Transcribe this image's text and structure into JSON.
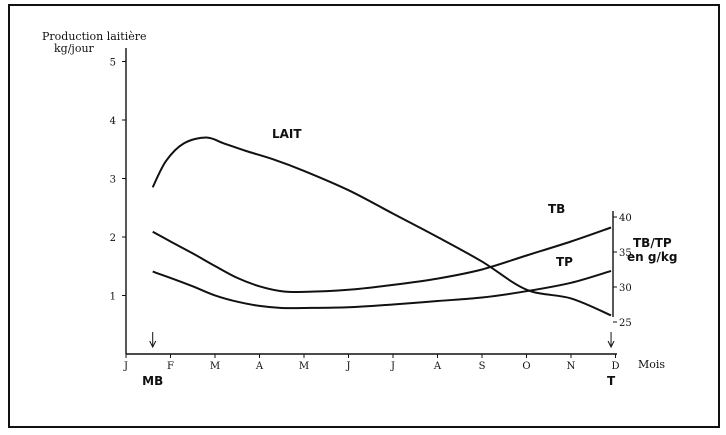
{
  "chart_data": {
    "type": "line",
    "ylabel_line1": "Production laitière",
    "ylabel_line2": "kg/jour",
    "xlabel": "Mois",
    "x_ticks": [
      "J",
      "F",
      "M",
      "A",
      "M",
      "J",
      "J",
      "A",
      "S",
      "O",
      "N",
      "D"
    ],
    "y_ticks": [
      "1",
      "2",
      "3",
      "4",
      "5"
    ],
    "y2_ticks": [
      "25",
      "30",
      "35",
      "40"
    ],
    "y2_label_line1": "TB/TP",
    "y2_label_line2": "en g/kg",
    "ylim": [
      0,
      5
    ],
    "y2lim": [
      25,
      40
    ],
    "series": [
      {
        "name": "LAIT",
        "axis": "left",
        "x": [
          0.6,
          0.9,
          1.3,
          1.8,
          2.2,
          2.7,
          3.3,
          4.0,
          5.0,
          6.0,
          7.0,
          8.0,
          9.0,
          10.0,
          10.9
        ],
        "y": [
          2.85,
          3.3,
          3.6,
          3.7,
          3.6,
          3.47,
          3.33,
          3.13,
          2.8,
          2.4,
          2.0,
          1.58,
          1.1,
          0.95,
          0.66
        ]
      },
      {
        "name": "TB",
        "axis": "right",
        "x": [
          0.6,
          1.0,
          1.5,
          2.0,
          2.5,
          3.0,
          3.5,
          4.0,
          5.0,
          6.0,
          7.0,
          8.0,
          9.0,
          10.0,
          10.9
        ],
        "y": [
          37.9,
          36.5,
          34.8,
          33.0,
          31.3,
          30.1,
          29.4,
          29.3,
          29.6,
          30.3,
          31.2,
          32.5,
          34.5,
          36.5,
          38.5
        ]
      },
      {
        "name": "TP",
        "axis": "right",
        "x": [
          0.6,
          1.0,
          1.5,
          2.0,
          2.5,
          3.0,
          3.5,
          4.0,
          5.0,
          6.0,
          7.0,
          8.0,
          9.0,
          10.0,
          10.9
        ],
        "y": [
          32.2,
          31.3,
          30.1,
          28.8,
          27.9,
          27.3,
          27.0,
          27.0,
          27.1,
          27.5,
          28.0,
          28.5,
          29.4,
          30.6,
          32.3
        ]
      }
    ],
    "annotations": [
      {
        "text": "MB",
        "x": 0.6,
        "arrow": true
      },
      {
        "text": "T",
        "x": 10.9,
        "arrow": true
      }
    ],
    "grid": false,
    "legend": "none"
  }
}
